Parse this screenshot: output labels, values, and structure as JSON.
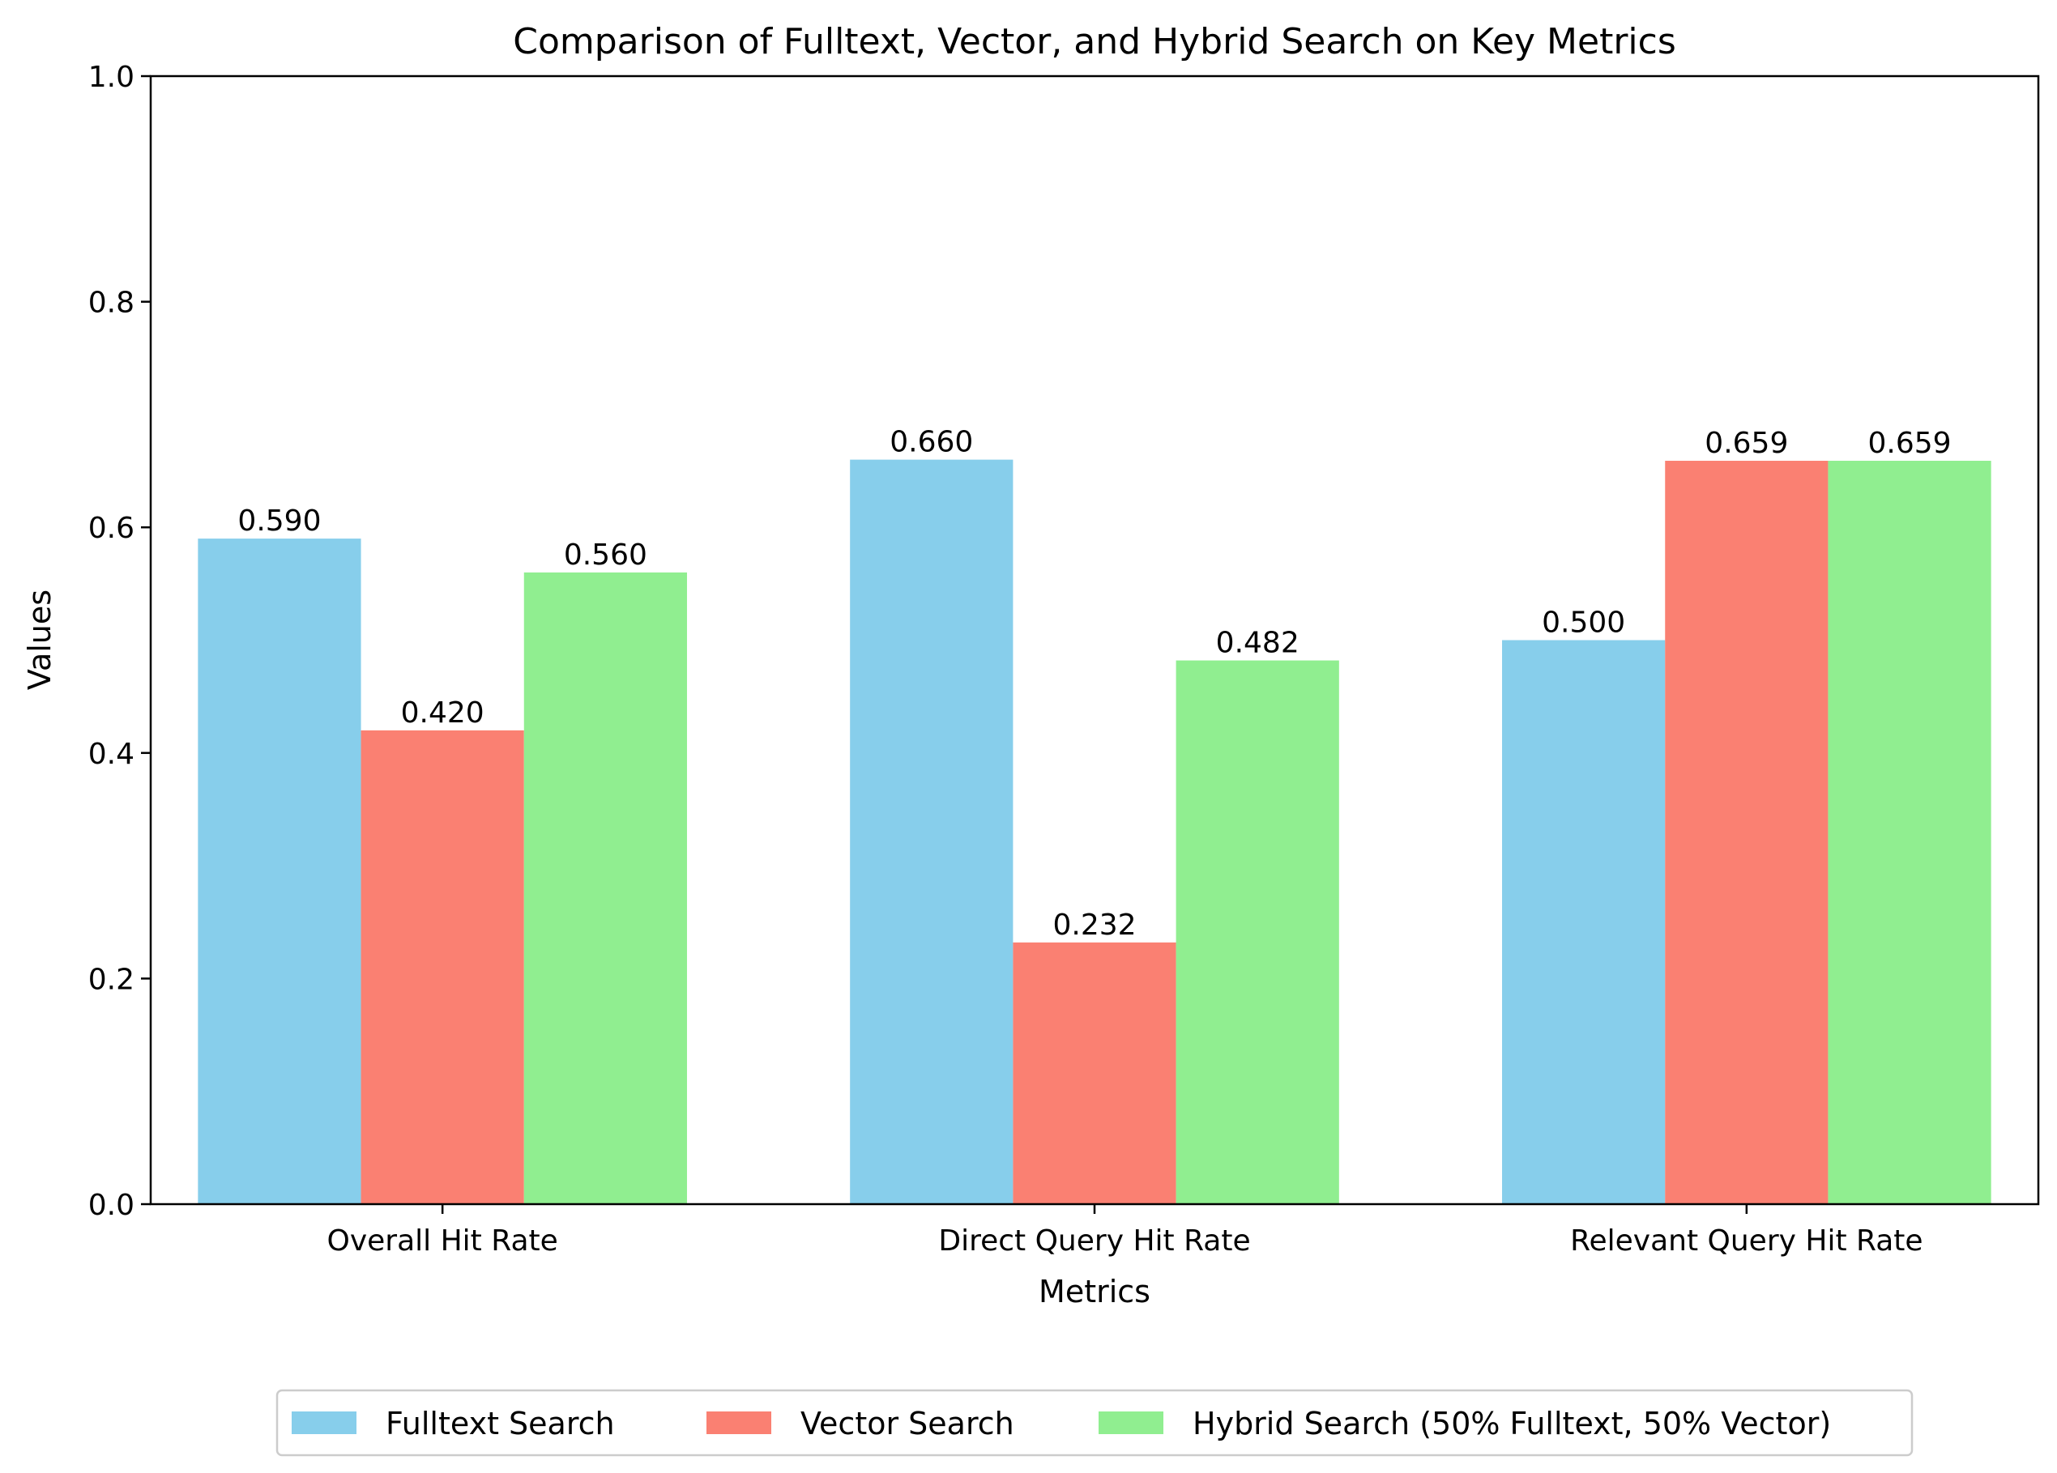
{
  "chart_data": {
    "type": "bar",
    "title": "Comparison of Fulltext, Vector, and Hybrid Search on Key Metrics",
    "xlabel": "Metrics",
    "ylabel": "Values",
    "ylim": [
      0,
      1.0
    ],
    "yticks": [
      "0.0",
      "0.2",
      "0.4",
      "0.6",
      "0.8",
      "1.0"
    ],
    "categories": [
      "Overall Hit Rate",
      "Direct Query Hit Rate",
      "Relevant Query Hit Rate"
    ],
    "series": [
      {
        "name": "Fulltext Search",
        "color": "#87ceeb",
        "values": [
          0.59,
          0.66,
          0.5
        ],
        "labels": [
          "0.590",
          "0.660",
          "0.500"
        ]
      },
      {
        "name": "Vector Search",
        "color": "#fa8072",
        "values": [
          0.42,
          0.232,
          0.659
        ],
        "labels": [
          "0.420",
          "0.232",
          "0.659"
        ]
      },
      {
        "name": "Hybrid Search (50% Fulltext, 50% Vector)",
        "color": "#90ee90",
        "values": [
          0.56,
          0.482,
          0.659
        ],
        "labels": [
          "0.560",
          "0.482",
          "0.659"
        ]
      }
    ],
    "legend_position": "bottom-center",
    "grid": false
  }
}
